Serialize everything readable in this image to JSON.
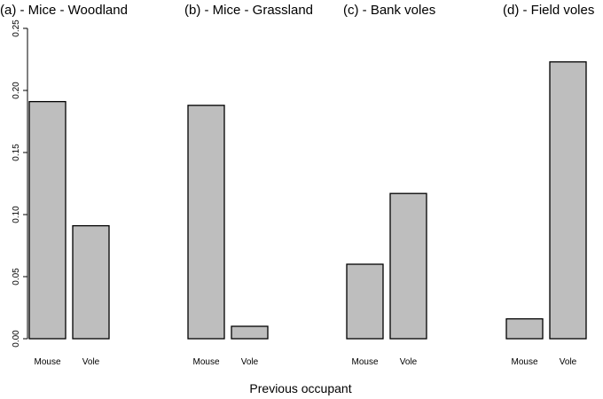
{
  "chart_data": {
    "type": "bar",
    "xlabel": "Previous occupant",
    "ylabel": "",
    "ylim": [
      0,
      0.25
    ],
    "yticks": [
      "0.00",
      "0.05",
      "0.10",
      "0.15",
      "0.20",
      "0.25"
    ],
    "bar_color": "#bebebe",
    "categories": [
      "Mouse",
      "Vole"
    ],
    "panels": [
      {
        "title": "(a) - Mice - Woodland",
        "values": [
          0.191,
          0.091
        ]
      },
      {
        "title": "(b) - Mice - Grassland",
        "values": [
          0.188,
          0.01
        ]
      },
      {
        "title": "(c) - Bank voles",
        "values": [
          0.06,
          0.117
        ]
      },
      {
        "title": "(d) - Field voles",
        "values": [
          0.016,
          0.223
        ]
      }
    ]
  }
}
